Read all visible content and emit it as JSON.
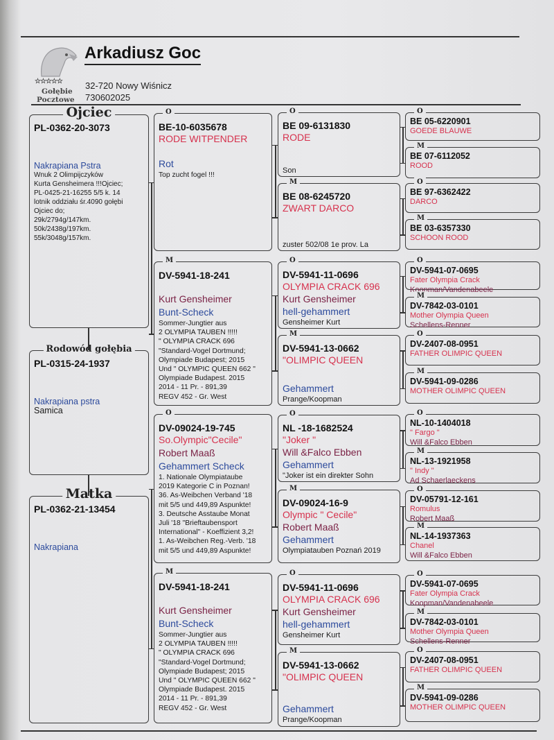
{
  "header": {
    "owner_name": "Arkadiusz Goc",
    "address": "32-720 Nowy Wiśnicz",
    "phone": "730602025",
    "logo": {
      "stars": "☆☆☆☆☆",
      "line1": "Gołębie",
      "line2": "Pocztowe"
    }
  },
  "colors": {
    "ring": "#111111",
    "name": "#d6314d",
    "breeder": "#7b2346",
    "color": "#2c4a9c",
    "note": "#1a1a1a"
  },
  "generation1": [
    {
      "label": "Ojciec",
      "lines": [
        {
          "t": "ring",
          "v": "PL-0362-20-3073"
        },
        {
          "t": "gap"
        },
        {
          "t": "color",
          "v": "Nakrapiana Pstra"
        },
        {
          "t": "note",
          "v": "Wnuk 2 Olimpijczyków"
        },
        {
          "t": "note",
          "v": "Kurta Gensheimera !!!Ojciec;"
        },
        {
          "t": "note",
          "v": "PL-0425-21-16255  5/5 k. 14"
        },
        {
          "t": "note",
          "v": "lotnik oddziału śr.4090 gołębi"
        },
        {
          "t": "note",
          "v": "Ojciec do;"
        },
        {
          "t": "note",
          "v": "29k/2794g/147km."
        },
        {
          "t": "note",
          "v": "50k/2438g/197km."
        },
        {
          "t": "note",
          "v": "55k/3048g/157km."
        }
      ]
    },
    {
      "label": "Rodowód gołębia",
      "lines": [
        {
          "t": "ring",
          "v": "PL-0315-24-1937"
        },
        {
          "t": "gap"
        },
        {
          "t": "color",
          "v": "Nakrapiana pstra"
        },
        {
          "t": "note samica",
          "v": "Samica"
        }
      ]
    },
    {
      "label": "Matka",
      "lines": [
        {
          "t": "ring",
          "v": "PL-0362-21-13454"
        },
        {
          "t": "gap"
        },
        {
          "t": "color",
          "v": "Nakrapiana"
        }
      ]
    }
  ],
  "generation2": [
    {
      "label": "O",
      "lines": [
        {
          "t": "ring",
          "v": "BE-10-6035678"
        },
        {
          "t": "name",
          "v": "RODE WITPENDER"
        },
        {
          "t": "gap"
        },
        {
          "t": "color",
          "v": "Rot"
        },
        {
          "t": "note",
          "v": "Top zucht fogel !!!"
        }
      ]
    },
    {
      "label": "M",
      "lines": [
        {
          "t": "ring",
          "v": "DV-5941-18-241"
        },
        {
          "t": "gap"
        },
        {
          "t": "breeder",
          "v": "Kurt Gensheimer"
        },
        {
          "t": "color",
          "v": "Bunt-Scheck"
        },
        {
          "t": "note",
          "v": "Sommer-Jungtier aus"
        },
        {
          "t": "note",
          "v": "2  OLYMPIA TAUBEN !!!!!"
        },
        {
          "t": "note",
          "v": " \" OLYMPIA CRACK 696"
        },
        {
          "t": "note",
          "v": "\"Standard-Vogel Dortmund;"
        },
        {
          "t": "note",
          "v": "Olympiade Budapest;  2015"
        },
        {
          "t": "note",
          "v": "Und \" OLYMPIC QUEEN 662 \""
        },
        {
          "t": "note",
          "v": "Olympiade Budapest. 2015"
        },
        {
          "t": "note",
          "v": "2014 - 11 Pr. - 891,39"
        },
        {
          "t": "note",
          "v": "REGV 452 - Gr. West"
        }
      ]
    },
    {
      "label": "O",
      "lines": [
        {
          "t": "ring",
          "v": "DV-09024-19-745"
        },
        {
          "t": "name",
          "v": "So.Olympic\"Cecile\""
        },
        {
          "t": "breeder",
          "v": "Robert Maaß"
        },
        {
          "t": "color",
          "v": "Gehammert Scheck"
        },
        {
          "t": "note",
          "v": "1. Nationale Olympiataube"
        },
        {
          "t": "note",
          "v": "2019 Kategorie C  in Poznan!"
        },
        {
          "t": "note",
          "v": "36. As-Weibchen Verband '18"
        },
        {
          "t": "note",
          "v": "mit 5/5 und 449,89 Aspunkte!"
        },
        {
          "t": "note",
          "v": "3. Deutsche Asstaube Monat"
        },
        {
          "t": "note",
          "v": "Juli '18 \"Brieftaubensport"
        },
        {
          "t": "note",
          "v": "International\" - Koeffizient 3,2!"
        },
        {
          "t": "note",
          "v": "1. As-Weibchen Reg.-Verb. '18"
        },
        {
          "t": "note",
          "v": "mit 5/5 und 449,89 Aspunkte!"
        }
      ]
    },
    {
      "label": "M",
      "lines": [
        {
          "t": "ring",
          "v": "DV-5941-18-241"
        },
        {
          "t": "gap"
        },
        {
          "t": "breeder",
          "v": "Kurt Gensheimer"
        },
        {
          "t": "color",
          "v": "Bunt-Scheck"
        },
        {
          "t": "note",
          "v": "Sommer-Jungtier aus"
        },
        {
          "t": "note",
          "v": "2  OLYMPIA TAUBEN !!!!!"
        },
        {
          "t": "note",
          "v": " \" OLYMPIA CRACK 696"
        },
        {
          "t": "note",
          "v": "\"Standard-Vogel Dortmund;"
        },
        {
          "t": "note",
          "v": "Olympiade Budapest;  2015"
        },
        {
          "t": "note",
          "v": "Und \" OLYMPIC QUEEN 662 \""
        },
        {
          "t": "note",
          "v": "Olympiade Budapest. 2015"
        },
        {
          "t": "note",
          "v": "2014 - 11 Pr. - 891,39"
        },
        {
          "t": "note",
          "v": "REGV 452 - Gr. West"
        }
      ]
    }
  ],
  "generation3": [
    {
      "label": "O",
      "lines": [
        {
          "t": "ring",
          "v": "BE 09-6131830"
        },
        {
          "t": "name",
          "v": "RODE"
        },
        {
          "t": "gap"
        },
        {
          "t": "gap"
        },
        {
          "t": "note",
          "v": "Son"
        }
      ]
    },
    {
      "label": "M",
      "lines": [
        {
          "t": "ring",
          "v": "BE 08-6245720"
        },
        {
          "t": "name",
          "v": "ZWART DARCO"
        },
        {
          "t": "gap"
        },
        {
          "t": "gap"
        },
        {
          "t": "note",
          "v": "zuster 502/08 1e prov. La"
        }
      ]
    },
    {
      "label": "O",
      "lines": [
        {
          "t": "ring",
          "v": "DV-5941-11-0696"
        },
        {
          "t": "name",
          "v": "OLYMPIA CRACK 696"
        },
        {
          "t": "breeder",
          "v": "Kurt Gensheimer"
        },
        {
          "t": "color",
          "v": "hell-gehammert"
        },
        {
          "t": "note",
          "v": "Gensheimer Kurt"
        }
      ]
    },
    {
      "label": "M",
      "lines": [
        {
          "t": "ring",
          "v": "DV-5941-13-0662"
        },
        {
          "t": "name",
          "v": "\"OLIMPIC QUEEN"
        },
        {
          "t": "gap"
        },
        {
          "t": "color",
          "v": "Gehammert"
        },
        {
          "t": "note",
          "v": "Prange/Koopman"
        }
      ]
    },
    {
      "label": "O",
      "lines": [
        {
          "t": "ring",
          "v": "NL -18-1682524"
        },
        {
          "t": "name",
          "v": "\"Joker \""
        },
        {
          "t": "breeder",
          "v": "Will &Falco Ebben"
        },
        {
          "t": "color",
          "v": "Gehammert"
        },
        {
          "t": "note",
          "v": "\"Joker ist ein direkter Sohn"
        }
      ]
    },
    {
      "label": "M",
      "lines": [
        {
          "t": "ring",
          "v": "DV-09024-16-9"
        },
        {
          "t": "name",
          "v": "Olympic  \" Cecile\""
        },
        {
          "t": "breeder",
          "v": "Robert Maaß"
        },
        {
          "t": "color",
          "v": "Gehammert"
        },
        {
          "t": "note",
          "v": "Olympiatauben Poznań 2019"
        }
      ]
    },
    {
      "label": "O",
      "lines": [
        {
          "t": "ring",
          "v": "DV-5941-11-0696"
        },
        {
          "t": "name",
          "v": "OLYMPIA CRACK 696"
        },
        {
          "t": "breeder",
          "v": "Kurt Gensheimer"
        },
        {
          "t": "color",
          "v": "hell-gehammert"
        },
        {
          "t": "note",
          "v": "Gensheimer Kurt"
        }
      ]
    },
    {
      "label": "M",
      "lines": [
        {
          "t": "ring",
          "v": "DV-5941-13-0662"
        },
        {
          "t": "name",
          "v": "\"OLIMPIC QUEEN"
        },
        {
          "t": "gap"
        },
        {
          "t": "color",
          "v": "Gehammert"
        },
        {
          "t": "note",
          "v": "Prange/Koopman"
        }
      ]
    }
  ],
  "generation4": [
    {
      "label": "O",
      "lines": [
        {
          "t": "ring",
          "v": "BE 05-6220901"
        },
        {
          "t": "name",
          "v": "GOEDE BLAUWE"
        }
      ]
    },
    {
      "label": "M",
      "lines": [
        {
          "t": "ring",
          "v": "BE 07-6112052"
        },
        {
          "t": "name",
          "v": "ROOD"
        }
      ]
    },
    {
      "label": "O",
      "lines": [
        {
          "t": "ring",
          "v": "BE 97-6362422"
        },
        {
          "t": "name",
          "v": "DARCO"
        }
      ]
    },
    {
      "label": "M",
      "lines": [
        {
          "t": "ring",
          "v": "BE 03-6357330"
        },
        {
          "t": "name",
          "v": "SCHOON ROOD"
        }
      ]
    },
    {
      "label": "O",
      "lines": [
        {
          "t": "ring",
          "v": "DV-5941-07-0695"
        },
        {
          "t": "name",
          "v": "Fater Olympia Crack"
        },
        {
          "t": "breeder",
          "v": "Koopman/Vandenabeele"
        }
      ]
    },
    {
      "label": "M",
      "lines": [
        {
          "t": "ring",
          "v": "DV-7842-03-0101"
        },
        {
          "t": "name",
          "v": "Mother Olympia Queen"
        },
        {
          "t": "breeder",
          "v": "Schellens-Renner"
        }
      ]
    },
    {
      "label": "O",
      "lines": [
        {
          "t": "ring",
          "v": "DV-2407-08-0951"
        },
        {
          "t": "name",
          "v": "FATHER OLIMPIC QUEEN"
        }
      ]
    },
    {
      "label": "M",
      "lines": [
        {
          "t": "ring",
          "v": "DV-5941-09-0286"
        },
        {
          "t": "name",
          "v": "MOTHER OLIMPIC QUEEN"
        }
      ]
    },
    {
      "label": "O",
      "lines": [
        {
          "t": "ring",
          "v": "NL-10-1404018"
        },
        {
          "t": "name",
          "v": "\" Fargo \""
        },
        {
          "t": "breeder",
          "v": "Will &Falco Ebben"
        }
      ]
    },
    {
      "label": "M",
      "lines": [
        {
          "t": "ring",
          "v": "NL-13-1921958"
        },
        {
          "t": "name",
          "v": "\" Indy \""
        },
        {
          "t": "breeder",
          "v": "Ad Schaerlaeckens"
        }
      ]
    },
    {
      "label": "O",
      "lines": [
        {
          "t": "ring",
          "v": "DV-05791-12-161"
        },
        {
          "t": "name",
          "v": "Romulus"
        },
        {
          "t": "breeder",
          "v": "Robert Maaß"
        }
      ]
    },
    {
      "label": "M",
      "lines": [
        {
          "t": "ring",
          "v": "NL-14-1937363"
        },
        {
          "t": "name",
          "v": "Chanel"
        },
        {
          "t": "breeder",
          "v": "Will &Falco Ebben"
        }
      ]
    },
    {
      "label": "O",
      "lines": [
        {
          "t": "ring",
          "v": "DV-5941-07-0695"
        },
        {
          "t": "name",
          "v": "Fater Olympia Crack"
        },
        {
          "t": "breeder",
          "v": "Koopman/Vandenabeele"
        }
      ]
    },
    {
      "label": "M",
      "lines": [
        {
          "t": "ring",
          "v": "DV-7842-03-0101"
        },
        {
          "t": "name",
          "v": "Mother Olympia Queen"
        },
        {
          "t": "breeder",
          "v": "Schellens-Renner"
        }
      ]
    },
    {
      "label": "O",
      "lines": [
        {
          "t": "ring",
          "v": "DV-2407-08-0951"
        },
        {
          "t": "name",
          "v": "FATHER OLIMPIC QUEEN"
        }
      ]
    },
    {
      "label": "M",
      "lines": [
        {
          "t": "ring",
          "v": "DV-5941-09-0286"
        },
        {
          "t": "name",
          "v": "MOTHER OLIMPIC QUEEN"
        }
      ]
    }
  ]
}
